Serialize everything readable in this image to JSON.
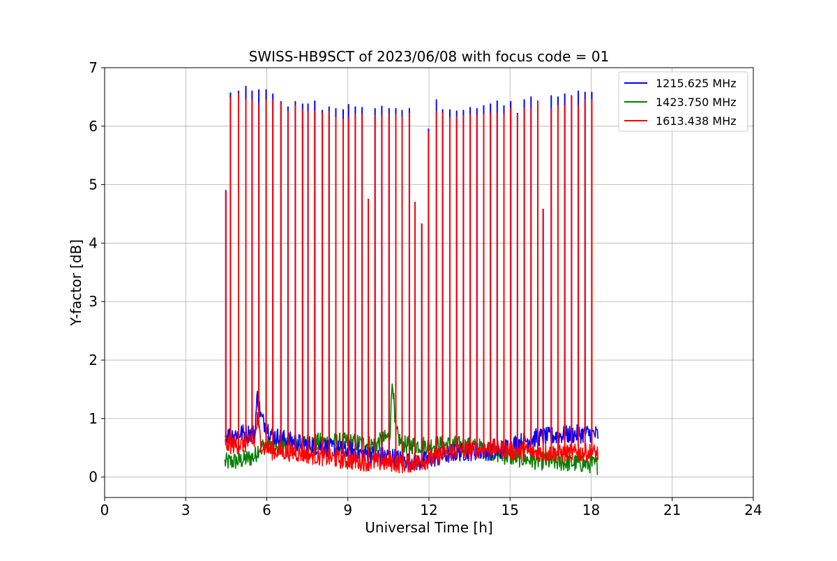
{
  "chart_data": {
    "type": "line",
    "title": "SWISS-HB9SCT of 2023/06/08 with focus code = 01",
    "xlabel": "Universal Time [h]",
    "ylabel": "Y-factor [dB]",
    "xlim": [
      0,
      24
    ],
    "ylim": [
      -0.35,
      7
    ],
    "xticks": [
      0,
      3,
      6,
      9,
      12,
      15,
      18,
      21,
      24
    ],
    "yticks": [
      0,
      1,
      2,
      3,
      4,
      5,
      6,
      7
    ],
    "grid": true,
    "legend_position": "top-right",
    "x_start": 4.45,
    "x_end": 18.25,
    "series": [
      {
        "name": "1215.625 MHz",
        "color": "#0000ff",
        "baseline": [
          [
            4.45,
            0.7
          ],
          [
            5.0,
            0.75
          ],
          [
            5.55,
            0.75
          ],
          [
            5.65,
            1.4
          ],
          [
            5.8,
            1.0
          ],
          [
            6.2,
            0.72
          ],
          [
            7.0,
            0.6
          ],
          [
            8.0,
            0.52
          ],
          [
            9.0,
            0.45
          ],
          [
            10.0,
            0.38
          ],
          [
            10.6,
            0.35
          ],
          [
            11.0,
            0.3
          ],
          [
            11.6,
            0.25
          ],
          [
            12.0,
            0.3
          ],
          [
            13.0,
            0.42
          ],
          [
            14.0,
            0.45
          ],
          [
            14.5,
            0.42
          ],
          [
            15.0,
            0.55
          ],
          [
            16.0,
            0.68
          ],
          [
            17.0,
            0.72
          ],
          [
            18.0,
            0.75
          ],
          [
            18.25,
            0.72
          ]
        ],
        "spikes": [
          [
            4.48,
            4.9
          ],
          [
            4.65,
            6.57
          ],
          [
            4.95,
            6.6
          ],
          [
            5.22,
            6.68
          ],
          [
            5.45,
            6.6
          ],
          [
            5.7,
            6.62
          ],
          [
            5.97,
            6.62
          ],
          [
            6.22,
            6.55
          ],
          [
            6.52,
            6.42
          ],
          [
            6.78,
            6.33
          ],
          [
            7.05,
            6.42
          ],
          [
            7.32,
            6.38
          ],
          [
            7.52,
            6.38
          ],
          [
            7.77,
            6.43
          ],
          [
            8.05,
            6.27
          ],
          [
            8.3,
            6.33
          ],
          [
            8.55,
            6.3
          ],
          [
            8.82,
            6.28
          ],
          [
            9.02,
            6.37
          ],
          [
            9.27,
            6.33
          ],
          [
            9.52,
            6.32
          ],
          [
            9.75,
            4.75
          ],
          [
            10.0,
            6.3
          ],
          [
            10.25,
            6.34
          ],
          [
            10.52,
            6.3
          ],
          [
            10.77,
            6.3
          ],
          [
            11.0,
            6.27
          ],
          [
            11.27,
            6.3
          ],
          [
            11.48,
            4.7
          ],
          [
            11.73,
            4.33
          ],
          [
            11.98,
            5.95
          ],
          [
            12.27,
            6.45
          ],
          [
            12.5,
            6.28
          ],
          [
            12.77,
            6.28
          ],
          [
            13.02,
            6.26
          ],
          [
            13.27,
            6.27
          ],
          [
            13.52,
            6.32
          ],
          [
            13.77,
            6.3
          ],
          [
            14.02,
            6.35
          ],
          [
            14.27,
            6.38
          ],
          [
            14.52,
            6.43
          ],
          [
            14.77,
            6.35
          ],
          [
            15.02,
            6.42
          ],
          [
            15.27,
            6.22
          ],
          [
            15.52,
            6.45
          ],
          [
            15.77,
            6.5
          ],
          [
            16.02,
            6.43
          ],
          [
            16.22,
            4.58
          ],
          [
            16.52,
            6.52
          ],
          [
            16.77,
            6.5
          ],
          [
            17.02,
            6.55
          ],
          [
            17.27,
            6.52
          ],
          [
            17.52,
            6.6
          ],
          [
            17.77,
            6.58
          ],
          [
            18.02,
            6.58
          ]
        ]
      },
      {
        "name": "1423.750 MHz",
        "color": "#008000",
        "baseline": [
          [
            4.45,
            0.25
          ],
          [
            5.0,
            0.28
          ],
          [
            5.55,
            0.35
          ],
          [
            5.7,
            0.5
          ],
          [
            6.0,
            0.55
          ],
          [
            7.0,
            0.58
          ],
          [
            8.0,
            0.6
          ],
          [
            9.0,
            0.6
          ],
          [
            10.0,
            0.55
          ],
          [
            10.55,
            0.7
          ],
          [
            10.65,
            1.75
          ],
          [
            10.75,
            0.8
          ],
          [
            11.0,
            0.55
          ],
          [
            12.0,
            0.55
          ],
          [
            13.0,
            0.55
          ],
          [
            14.0,
            0.5
          ],
          [
            14.5,
            0.4
          ],
          [
            15.0,
            0.35
          ],
          [
            16.0,
            0.28
          ],
          [
            17.0,
            0.25
          ],
          [
            18.0,
            0.22
          ],
          [
            18.25,
            0.2
          ]
        ],
        "spikes": []
      },
      {
        "name": "1613.438 MHz",
        "color": "#ff0000",
        "baseline": [
          [
            4.45,
            0.55
          ],
          [
            5.0,
            0.55
          ],
          [
            5.55,
            0.6
          ],
          [
            5.65,
            1.0
          ],
          [
            5.8,
            0.55
          ],
          [
            6.2,
            0.45
          ],
          [
            7.0,
            0.42
          ],
          [
            8.0,
            0.35
          ],
          [
            9.0,
            0.28
          ],
          [
            10.0,
            0.25
          ],
          [
            10.6,
            0.25
          ],
          [
            11.0,
            0.22
          ],
          [
            11.6,
            0.25
          ],
          [
            12.0,
            0.3
          ],
          [
            12.5,
            0.38
          ],
          [
            13.0,
            0.45
          ],
          [
            14.0,
            0.48
          ],
          [
            14.5,
            0.5
          ],
          [
            15.0,
            0.45
          ],
          [
            16.0,
            0.42
          ],
          [
            17.0,
            0.4
          ],
          [
            18.0,
            0.42
          ],
          [
            18.25,
            0.4
          ]
        ],
        "spikes": [
          [
            4.48,
            4.88
          ],
          [
            4.65,
            6.48
          ],
          [
            4.95,
            6.55
          ],
          [
            5.22,
            6.45
          ],
          [
            5.45,
            6.45
          ],
          [
            5.7,
            6.38
          ],
          [
            5.97,
            6.45
          ],
          [
            6.22,
            6.45
          ],
          [
            6.52,
            6.4
          ],
          [
            6.78,
            6.25
          ],
          [
            7.05,
            6.35
          ],
          [
            7.32,
            6.28
          ],
          [
            7.52,
            6.25
          ],
          [
            7.77,
            6.25
          ],
          [
            8.05,
            6.22
          ],
          [
            8.3,
            6.25
          ],
          [
            8.55,
            6.15
          ],
          [
            8.82,
            6.12
          ],
          [
            9.02,
            6.15
          ],
          [
            9.27,
            6.2
          ],
          [
            9.52,
            6.2
          ],
          [
            9.75,
            4.75
          ],
          [
            10.0,
            6.18
          ],
          [
            10.25,
            6.18
          ],
          [
            10.52,
            6.2
          ],
          [
            10.77,
            6.2
          ],
          [
            11.0,
            6.15
          ],
          [
            11.27,
            6.22
          ],
          [
            11.48,
            4.7
          ],
          [
            11.73,
            4.33
          ],
          [
            11.98,
            5.9
          ],
          [
            12.27,
            6.25
          ],
          [
            12.5,
            6.22
          ],
          [
            12.77,
            6.15
          ],
          [
            13.02,
            6.15
          ],
          [
            13.27,
            6.18
          ],
          [
            13.52,
            6.2
          ],
          [
            13.77,
            6.18
          ],
          [
            14.02,
            6.2
          ],
          [
            14.27,
            6.22
          ],
          [
            14.52,
            6.22
          ],
          [
            14.77,
            6.2
          ],
          [
            15.02,
            6.3
          ],
          [
            15.27,
            6.2
          ],
          [
            15.52,
            6.3
          ],
          [
            15.77,
            6.3
          ],
          [
            16.02,
            6.42
          ],
          [
            16.22,
            4.58
          ],
          [
            16.52,
            6.3
          ],
          [
            16.77,
            6.35
          ],
          [
            17.02,
            6.35
          ],
          [
            17.27,
            6.5
          ],
          [
            17.52,
            6.35
          ],
          [
            17.77,
            6.45
          ],
          [
            18.02,
            6.45
          ]
        ]
      }
    ]
  }
}
